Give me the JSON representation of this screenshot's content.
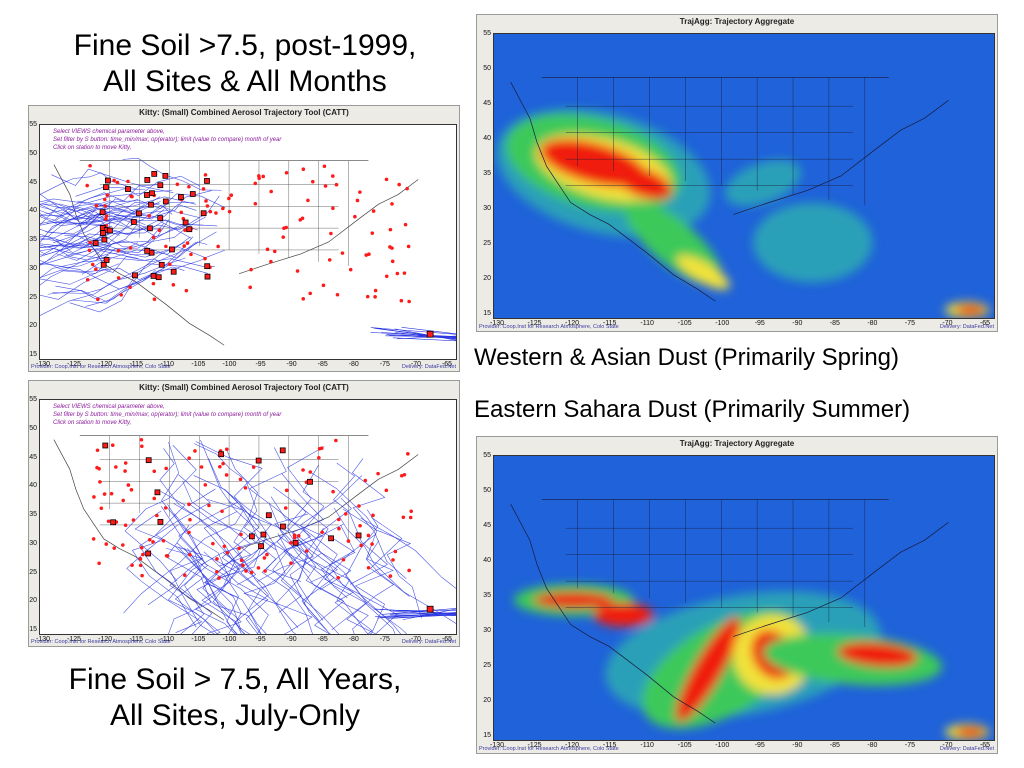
{
  "captions": {
    "top_left": [
      "Fine Soil >7.5, post-1999,",
      "All Sites & All Months"
    ],
    "bottom_left": [
      "Fine Soil > 7.5, All Years,",
      "All Sites, July-Only"
    ],
    "right_spring": "Western & Asian Dust (Primarily Spring)",
    "right_summer": "Eastern Sahara Dust (Primarily Summer)"
  },
  "catt_windows": {
    "title": "Kitty: (Small) Combined Aerosol Trajectory Tool (CATT)",
    "instructions": [
      "Select VIEWS chemical parameter above,",
      "Set filter by S button: time_min/max; op(erator); limit (value to compare) month of year",
      "Click on station to move Kitty,"
    ],
    "provider": "Provider: Coop.Inst for Research Atmosphere, Colo State",
    "delivery": "Delivery: DataFed.Net"
  },
  "trajagg_windows": {
    "title": "TrajAgg: Trajectory Aggregate",
    "provider": "Provider: Coop.Inst for Research Atmosphere, Colo State",
    "delivery": "Delivery: DataFed.Net"
  },
  "axes": {
    "x_ticks": [
      "-130",
      "-125",
      "-120",
      "-115",
      "-110",
      "-105",
      "-100",
      "-95",
      "-90",
      "-85",
      "-80",
      "-75",
      "-70",
      "-65"
    ],
    "y_ticks": [
      "55",
      "50",
      "45",
      "40",
      "35",
      "30",
      "25",
      "20",
      "15"
    ]
  },
  "colors": {
    "map_bg_catt": "#ffffff",
    "trajectory_blue": "#2a36e0",
    "station_red": "#ff1a1a",
    "agg_bg": "#1f62d9",
    "agg_low": "#2aa0b8",
    "agg_mid": "#3ec95a",
    "agg_high": "#f2e23a",
    "agg_peak": "#f01a10"
  }
}
